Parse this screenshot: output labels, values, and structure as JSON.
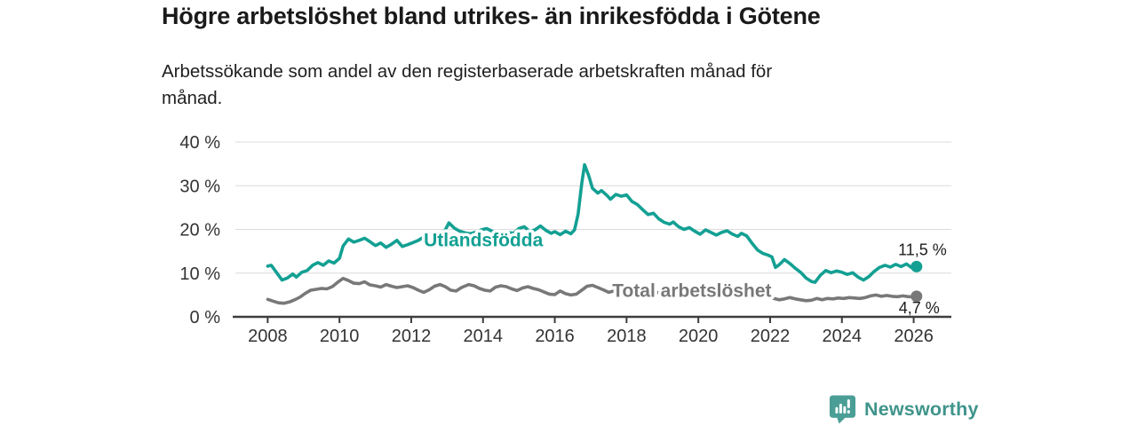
{
  "header": {
    "title": "Högre arbetslöshet bland utrikes- än inrikesfödda i Götene",
    "subtitle": "Arbetssökande som andel av den registerbaserade arbetskraften månad för\nmånad."
  },
  "branding": {
    "logo_text": "Newsworthy",
    "logo_icon": "bar-chart-speech-bubble-icon",
    "logo_color": "#3f948b",
    "logo_icon_color": "#4a9e96"
  },
  "colors": {
    "foreign_born_line": "#13a093",
    "total_line": "#787878",
    "grid": "#dcdcdc",
    "axis": "#3d3d3d",
    "text": "#333333"
  },
  "chart_data": {
    "type": "line",
    "title": "Högre arbetslöshet bland utrikes- än inrikesfödda i Götene",
    "subtitle": "Arbetssökande som andel av den registerbaserade arbetskraften månad för månad.",
    "unit": "%",
    "grid": "horizontal",
    "legend_position": "inline",
    "xlim": [
      2007.1,
      2027.05
    ],
    "ylim": [
      0,
      40
    ],
    "y_ticks": [
      {
        "value": 0,
        "label": "0 %"
      },
      {
        "value": 10,
        "label": "10 %"
      },
      {
        "value": 20,
        "label": "20 %"
      },
      {
        "value": 30,
        "label": "30 %"
      },
      {
        "value": 40,
        "label": "40 %"
      }
    ],
    "x_ticks": [
      {
        "value": 2008,
        "label": "2008"
      },
      {
        "value": 2010,
        "label": "2010"
      },
      {
        "value": 2012,
        "label": "2012"
      },
      {
        "value": 2014,
        "label": "2014"
      },
      {
        "value": 2016,
        "label": "2016"
      },
      {
        "value": 2018,
        "label": "2018"
      },
      {
        "value": 2020,
        "label": "2020"
      },
      {
        "value": 2022,
        "label": "2022"
      },
      {
        "value": 2024,
        "label": "2024"
      },
      {
        "value": 2026,
        "label": "2026"
      }
    ],
    "series": [
      {
        "name": "Total arbetslöshet",
        "color": "#787878",
        "inline_label": {
          "text": "Total arbetslöshet",
          "x": 2017.6,
          "y": 4.6,
          "anchor": "start"
        },
        "end_label": "4,7 %",
        "end_value": 4.7,
        "end_label_offset": [
          26,
          19
        ],
        "points": [
          [
            2008.0,
            4.0
          ],
          [
            2008.15,
            3.6
          ],
          [
            2008.3,
            3.2
          ],
          [
            2008.45,
            3.1
          ],
          [
            2008.6,
            3.4
          ],
          [
            2008.75,
            3.9
          ],
          [
            2008.9,
            4.5
          ],
          [
            2009.05,
            5.4
          ],
          [
            2009.2,
            6.1
          ],
          [
            2009.35,
            6.3
          ],
          [
            2009.5,
            6.5
          ],
          [
            2009.65,
            6.4
          ],
          [
            2009.8,
            6.9
          ],
          [
            2009.95,
            7.9
          ],
          [
            2010.1,
            8.8
          ],
          [
            2010.25,
            8.3
          ],
          [
            2010.4,
            7.7
          ],
          [
            2010.55,
            7.6
          ],
          [
            2010.7,
            8.0
          ],
          [
            2010.85,
            7.3
          ],
          [
            2011.0,
            7.1
          ],
          [
            2011.15,
            6.8
          ],
          [
            2011.3,
            7.4
          ],
          [
            2011.45,
            7.0
          ],
          [
            2011.6,
            6.7
          ],
          [
            2011.75,
            6.9
          ],
          [
            2011.9,
            7.1
          ],
          [
            2012.05,
            6.7
          ],
          [
            2012.2,
            6.1
          ],
          [
            2012.35,
            5.6
          ],
          [
            2012.5,
            6.2
          ],
          [
            2012.65,
            7.0
          ],
          [
            2012.8,
            7.4
          ],
          [
            2012.95,
            6.9
          ],
          [
            2013.1,
            6.1
          ],
          [
            2013.25,
            5.9
          ],
          [
            2013.4,
            6.7
          ],
          [
            2013.6,
            7.4
          ],
          [
            2013.75,
            7.1
          ],
          [
            2013.9,
            6.5
          ],
          [
            2014.05,
            6.1
          ],
          [
            2014.2,
            5.9
          ],
          [
            2014.35,
            6.8
          ],
          [
            2014.5,
            7.1
          ],
          [
            2014.65,
            6.9
          ],
          [
            2014.8,
            6.4
          ],
          [
            2014.95,
            6.0
          ],
          [
            2015.1,
            6.6
          ],
          [
            2015.25,
            6.9
          ],
          [
            2015.4,
            6.5
          ],
          [
            2015.55,
            6.2
          ],
          [
            2015.7,
            5.7
          ],
          [
            2015.85,
            5.2
          ],
          [
            2016.0,
            5.1
          ],
          [
            2016.15,
            5.9
          ],
          [
            2016.3,
            5.3
          ],
          [
            2016.45,
            5.0
          ],
          [
            2016.6,
            5.2
          ],
          [
            2016.75,
            6.1
          ],
          [
            2016.9,
            7.0
          ],
          [
            2017.05,
            7.2
          ],
          [
            2017.2,
            6.7
          ],
          [
            2017.35,
            6.2
          ],
          [
            2017.5,
            5.6
          ],
          [
            2017.65,
            5.9
          ],
          [
            2017.8,
            6.1
          ],
          [
            2017.95,
            6.2
          ],
          [
            2018.15,
            6.0
          ],
          [
            2018.35,
            5.7
          ],
          [
            2018.55,
            5.5
          ],
          [
            2018.75,
            5.7
          ],
          [
            2018.95,
            5.4
          ],
          [
            2019.15,
            5.2
          ],
          [
            2019.35,
            5.5
          ],
          [
            2019.55,
            5.7
          ],
          [
            2019.75,
            5.4
          ],
          [
            2019.95,
            5.9
          ],
          [
            2020.15,
            6.3
          ],
          [
            2020.35,
            6.6
          ],
          [
            2020.55,
            6.4
          ],
          [
            2020.75,
            6.1
          ],
          [
            2020.95,
            5.9
          ],
          [
            2021.15,
            5.7
          ],
          [
            2021.35,
            5.5
          ],
          [
            2021.55,
            5.2
          ],
          [
            2021.75,
            4.9
          ],
          [
            2021.95,
            4.6
          ],
          [
            2022.1,
            4.2
          ],
          [
            2022.25,
            3.9
          ],
          [
            2022.4,
            4.1
          ],
          [
            2022.55,
            4.4
          ],
          [
            2022.7,
            4.1
          ],
          [
            2022.85,
            3.9
          ],
          [
            2023.0,
            3.7
          ],
          [
            2023.15,
            3.8
          ],
          [
            2023.3,
            4.2
          ],
          [
            2023.45,
            3.9
          ],
          [
            2023.6,
            4.2
          ],
          [
            2023.75,
            4.1
          ],
          [
            2023.9,
            4.3
          ],
          [
            2024.05,
            4.2
          ],
          [
            2024.2,
            4.4
          ],
          [
            2024.35,
            4.3
          ],
          [
            2024.5,
            4.2
          ],
          [
            2024.65,
            4.4
          ],
          [
            2024.8,
            4.8
          ],
          [
            2024.95,
            5.0
          ],
          [
            2025.1,
            4.7
          ],
          [
            2025.25,
            4.9
          ],
          [
            2025.4,
            4.7
          ],
          [
            2025.55,
            4.6
          ],
          [
            2025.7,
            4.8
          ],
          [
            2025.85,
            4.6
          ],
          [
            2026.0,
            4.6
          ],
          [
            2026.08,
            4.7
          ]
        ]
      },
      {
        "name": "Utlandsfödda",
        "color": "#13a093",
        "inline_label": {
          "text": "Utlandsfödda",
          "x": 2012.35,
          "y": 16.1,
          "anchor": "start"
        },
        "end_label": "11,5 %",
        "end_value": 11.5,
        "end_label_offset": [
          34,
          -13
        ],
        "points": [
          [
            2008.0,
            11.6
          ],
          [
            2008.1,
            11.8
          ],
          [
            2008.25,
            10.1
          ],
          [
            2008.4,
            8.4
          ],
          [
            2008.55,
            8.9
          ],
          [
            2008.7,
            9.8
          ],
          [
            2008.8,
            9.1
          ],
          [
            2008.95,
            10.2
          ],
          [
            2009.1,
            10.6
          ],
          [
            2009.25,
            11.8
          ],
          [
            2009.4,
            12.4
          ],
          [
            2009.55,
            11.8
          ],
          [
            2009.7,
            12.8
          ],
          [
            2009.85,
            12.3
          ],
          [
            2010.0,
            13.4
          ],
          [
            2010.1,
            16.2
          ],
          [
            2010.25,
            17.8
          ],
          [
            2010.4,
            17.1
          ],
          [
            2010.55,
            17.5
          ],
          [
            2010.7,
            18.0
          ],
          [
            2010.85,
            17.2
          ],
          [
            2011.0,
            16.3
          ],
          [
            2011.15,
            16.9
          ],
          [
            2011.3,
            15.9
          ],
          [
            2011.45,
            16.6
          ],
          [
            2011.6,
            17.5
          ],
          [
            2011.75,
            16.1
          ],
          [
            2011.9,
            16.5
          ],
          [
            2012.05,
            17.0
          ],
          [
            2012.2,
            17.5
          ],
          [
            2012.35,
            18.3
          ],
          [
            2012.5,
            18.7
          ],
          [
            2012.65,
            19.1
          ],
          [
            2012.8,
            18.8
          ],
          [
            2012.95,
            19.9
          ],
          [
            2013.05,
            21.5
          ],
          [
            2013.2,
            20.3
          ],
          [
            2013.35,
            19.6
          ],
          [
            2013.5,
            19.2
          ],
          [
            2013.65,
            19.0
          ],
          [
            2013.8,
            19.4
          ],
          [
            2013.95,
            19.9
          ],
          [
            2014.1,
            20.2
          ],
          [
            2014.25,
            19.6
          ],
          [
            2014.4,
            19.3
          ],
          [
            2014.55,
            19.0
          ],
          [
            2014.7,
            19.3
          ],
          [
            2014.85,
            19.1
          ],
          [
            2015.0,
            20.2
          ],
          [
            2015.15,
            20.6
          ],
          [
            2015.3,
            19.6
          ],
          [
            2015.45,
            19.9
          ],
          [
            2015.6,
            20.8
          ],
          [
            2015.75,
            19.8
          ],
          [
            2015.9,
            19.1
          ],
          [
            2016.0,
            19.5
          ],
          [
            2016.15,
            18.8
          ],
          [
            2016.3,
            19.6
          ],
          [
            2016.45,
            19.0
          ],
          [
            2016.55,
            19.9
          ],
          [
            2016.65,
            23.5
          ],
          [
            2016.75,
            30.5
          ],
          [
            2016.83,
            34.8
          ],
          [
            2016.95,
            32.2
          ],
          [
            2017.05,
            29.4
          ],
          [
            2017.2,
            28.3
          ],
          [
            2017.3,
            28.9
          ],
          [
            2017.45,
            27.8
          ],
          [
            2017.55,
            26.9
          ],
          [
            2017.7,
            28.0
          ],
          [
            2017.85,
            27.6
          ],
          [
            2018.0,
            27.9
          ],
          [
            2018.15,
            26.4
          ],
          [
            2018.3,
            25.7
          ],
          [
            2018.45,
            24.5
          ],
          [
            2018.6,
            23.4
          ],
          [
            2018.75,
            23.7
          ],
          [
            2018.9,
            22.4
          ],
          [
            2019.05,
            21.6
          ],
          [
            2019.2,
            21.2
          ],
          [
            2019.3,
            21.7
          ],
          [
            2019.45,
            20.6
          ],
          [
            2019.6,
            20.0
          ],
          [
            2019.75,
            20.4
          ],
          [
            2019.9,
            19.6
          ],
          [
            2020.05,
            18.9
          ],
          [
            2020.2,
            19.9
          ],
          [
            2020.35,
            19.3
          ],
          [
            2020.5,
            18.7
          ],
          [
            2020.65,
            19.3
          ],
          [
            2020.8,
            19.7
          ],
          [
            2020.95,
            18.9
          ],
          [
            2021.1,
            18.4
          ],
          [
            2021.2,
            19.1
          ],
          [
            2021.35,
            18.5
          ],
          [
            2021.5,
            16.8
          ],
          [
            2021.65,
            15.3
          ],
          [
            2021.8,
            14.5
          ],
          [
            2021.95,
            14.1
          ],
          [
            2022.05,
            13.7
          ],
          [
            2022.15,
            11.3
          ],
          [
            2022.25,
            11.9
          ],
          [
            2022.4,
            13.1
          ],
          [
            2022.55,
            12.2
          ],
          [
            2022.7,
            11.1
          ],
          [
            2022.85,
            10.2
          ],
          [
            2023.0,
            8.9
          ],
          [
            2023.15,
            8.1
          ],
          [
            2023.25,
            7.9
          ],
          [
            2023.4,
            9.5
          ],
          [
            2023.55,
            10.6
          ],
          [
            2023.7,
            10.1
          ],
          [
            2023.85,
            10.5
          ],
          [
            2024.0,
            10.2
          ],
          [
            2024.15,
            9.7
          ],
          [
            2024.3,
            10.1
          ],
          [
            2024.45,
            9.1
          ],
          [
            2024.6,
            8.4
          ],
          [
            2024.75,
            9.2
          ],
          [
            2024.9,
            10.4
          ],
          [
            2025.05,
            11.3
          ],
          [
            2025.2,
            11.8
          ],
          [
            2025.35,
            11.4
          ],
          [
            2025.5,
            12.0
          ],
          [
            2025.65,
            11.5
          ],
          [
            2025.8,
            12.1
          ],
          [
            2025.95,
            11.2
          ],
          [
            2026.08,
            11.5
          ]
        ]
      }
    ]
  }
}
